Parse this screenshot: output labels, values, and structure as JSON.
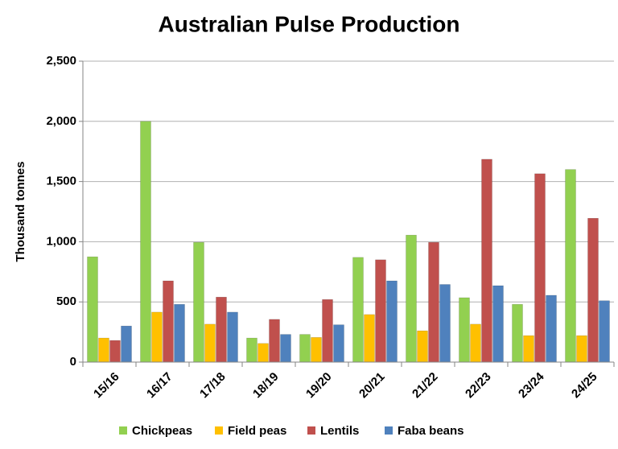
{
  "chart_data": {
    "type": "bar",
    "title": "Australian Pulse Production",
    "y_label": "Thousand tonnes",
    "categories": [
      "15/16",
      "16/17",
      "17/18",
      "18/19",
      "19/20",
      "20/21",
      "21/22",
      "22/23",
      "23/24",
      "24/25"
    ],
    "series": [
      {
        "name": "Chickpeas",
        "color": "#92d050",
        "values": [
          875,
          2000,
          995,
          200,
          230,
          870,
          1055,
          535,
          480,
          1600
        ]
      },
      {
        "name": "Field peas",
        "color": "#ffc000",
        "values": [
          200,
          415,
          315,
          155,
          205,
          395,
          260,
          315,
          220,
          220
        ]
      },
      {
        "name": "Lentils",
        "color": "#c0504d",
        "values": [
          180,
          675,
          540,
          355,
          520,
          850,
          995,
          1685,
          1565,
          1195
        ]
      },
      {
        "name": "Faba beans",
        "color": "#4f81bd",
        "values": [
          300,
          480,
          415,
          230,
          310,
          675,
          645,
          635,
          555,
          510
        ]
      }
    ],
    "ylim": [
      0,
      2500
    ],
    "yticks": [
      0,
      500,
      {
        "value": 1000,
        "label": "1,000"
      },
      {
        "value": 1500,
        "label": "1,500"
      },
      {
        "value": 2000,
        "label": "2,000"
      },
      {
        "value": 2500,
        "label": "2,500"
      }
    ],
    "grid": true,
    "legend": "bottom"
  }
}
